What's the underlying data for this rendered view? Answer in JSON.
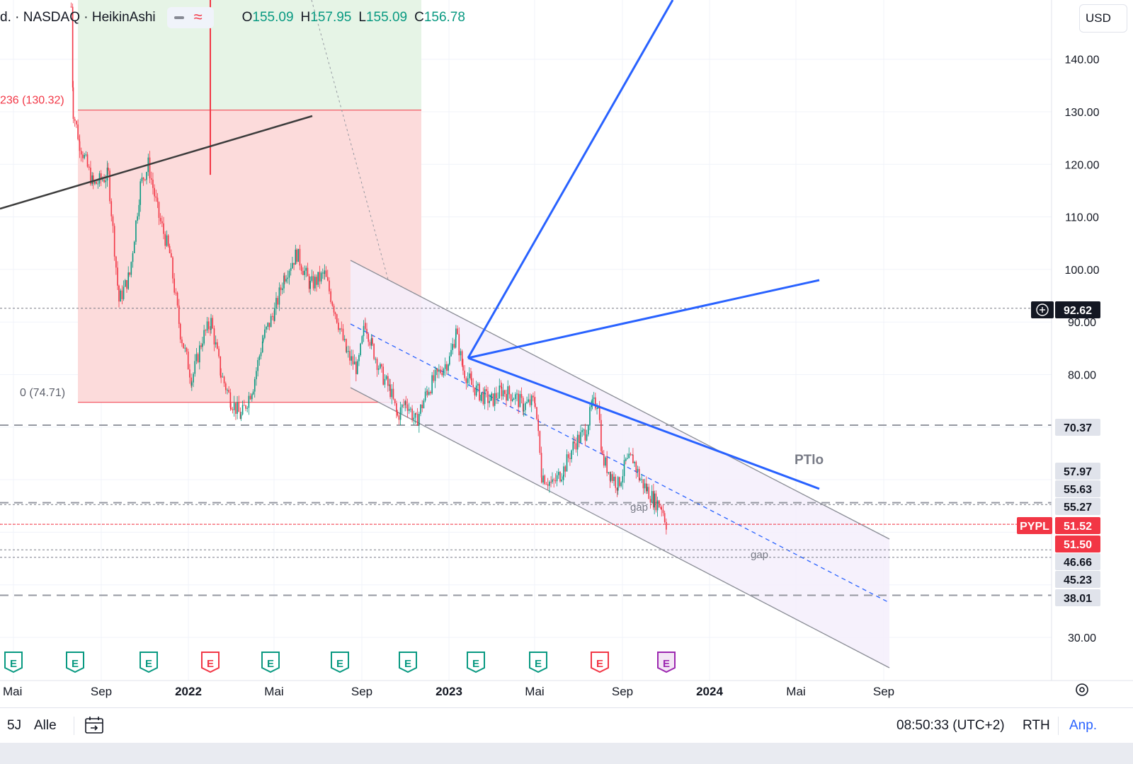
{
  "legend": {
    "symbol": "d. · NASDAQ · HeikinAshi",
    "ohlc": [
      {
        "label": "O",
        "value": "155.09"
      },
      {
        "label": "H",
        "value": "157.95"
      },
      {
        "label": "L",
        "value": "155.09"
      },
      {
        "label": "C",
        "value": "156.78"
      }
    ],
    "toggle_icon": "wave-icon"
  },
  "currency": "USD",
  "colors": {
    "up": "#089981",
    "down": "#f23645",
    "trend_blue": "#2962ff",
    "channel_fill": "#f4eefb",
    "fib_green": "#e6f4e6",
    "fib_red": "#fcd9d9"
  },
  "chart_data": {
    "type": "candlestick",
    "symbol": "PYPL",
    "exchange": "NASDAQ",
    "style": "HeikinAshi",
    "ylim": [
      24,
      152
    ],
    "y_ticks": [
      "140.00",
      "130.00",
      "120.00",
      "110.00",
      "100.00",
      "90.00",
      "80.00",
      "30.00"
    ],
    "x_ticks": [
      "Mai",
      "Sep",
      "2022",
      "Mai",
      "Sep",
      "2023",
      "Mai",
      "Sep",
      "2024",
      "Mai",
      "Sep"
    ],
    "x_tick_bold": [
      false,
      false,
      true,
      false,
      false,
      true,
      false,
      false,
      true,
      false,
      false
    ],
    "price_path": [
      [
        "2021-07-20",
        150
      ],
      [
        "2021-07-23",
        130
      ],
      [
        "2021-08-01",
        124
      ],
      [
        "2021-08-20",
        116
      ],
      [
        "2021-09-10",
        118
      ],
      [
        "2021-09-25",
        94
      ],
      [
        "2021-10-10",
        99
      ],
      [
        "2021-10-25",
        116
      ],
      [
        "2021-11-05",
        120
      ],
      [
        "2021-11-20",
        110
      ],
      [
        "2021-12-05",
        103
      ],
      [
        "2021-12-20",
        88
      ],
      [
        "2022-01-05",
        79
      ],
      [
        "2022-01-20",
        87
      ],
      [
        "2022-02-01",
        90
      ],
      [
        "2022-02-15",
        80
      ],
      [
        "2022-03-01",
        75
      ],
      [
        "2022-03-15",
        72
      ],
      [
        "2022-04-01",
        78
      ],
      [
        "2022-04-15",
        87
      ],
      [
        "2022-05-01",
        92
      ],
      [
        "2022-05-15",
        99
      ],
      [
        "2022-06-01",
        103
      ],
      [
        "2022-06-20",
        97
      ],
      [
        "2022-07-10",
        99
      ],
      [
        "2022-07-25",
        92
      ],
      [
        "2022-08-10",
        84
      ],
      [
        "2022-08-25",
        81
      ],
      [
        "2022-09-05",
        90
      ],
      [
        "2022-09-15",
        85
      ],
      [
        "2022-09-28",
        80
      ],
      [
        "2022-10-10",
        77
      ],
      [
        "2022-10-20",
        72
      ],
      [
        "2022-11-01",
        75
      ],
      [
        "2022-11-15",
        71
      ],
      [
        "2022-12-01",
        77
      ],
      [
        "2022-12-15",
        80
      ],
      [
        "2023-01-01",
        83
      ],
      [
        "2023-01-10",
        88
      ],
      [
        "2023-01-20",
        81
      ],
      [
        "2023-02-01",
        78
      ],
      [
        "2023-02-15",
        76
      ],
      [
        "2023-03-01",
        75
      ],
      [
        "2023-03-15",
        77
      ],
      [
        "2023-04-01",
        76
      ],
      [
        "2023-04-15",
        74
      ],
      [
        "2023-05-01",
        75
      ],
      [
        "2023-05-10",
        61
      ],
      [
        "2023-05-25",
        59
      ],
      [
        "2023-06-10",
        62
      ],
      [
        "2023-06-25",
        67
      ],
      [
        "2023-07-10",
        69
      ],
      [
        "2023-07-20",
        74
      ],
      [
        "2023-07-28",
        75
      ],
      [
        "2023-08-03",
        64
      ],
      [
        "2023-08-15",
        61
      ],
      [
        "2023-08-25",
        59
      ],
      [
        "2023-09-05",
        63
      ],
      [
        "2023-09-15",
        64
      ],
      [
        "2023-09-25",
        60
      ],
      [
        "2023-10-05",
        58
      ],
      [
        "2023-10-15",
        56
      ],
      [
        "2023-10-25",
        55
      ],
      [
        "2023-11-01",
        51.5
      ]
    ],
    "horizontal_levels": [
      {
        "value": 92.62,
        "label": "92.62",
        "style": "dotted",
        "color": "#787b86"
      },
      {
        "value": 70.37,
        "label": "70.37",
        "style": "dashed",
        "color": "#9598a1"
      },
      {
        "value": 57.97,
        "label": "57.97",
        "style": "none",
        "color": "#434651"
      },
      {
        "value": 55.63,
        "label": "55.63",
        "style": "dashed",
        "color": "#9598a1"
      },
      {
        "value": 55.27,
        "label": "55.27",
        "style": "dotted",
        "color": "#787b86"
      },
      {
        "value": 51.52,
        "label": "51.52",
        "style": "dotted",
        "color": "#f23645"
      },
      {
        "value": 51.5,
        "label": "51.50",
        "style": "none",
        "color": "#f23645"
      },
      {
        "value": 46.66,
        "label": "46.66",
        "style": "dotted",
        "color": "#787b86"
      },
      {
        "value": 45.23,
        "label": "45.23",
        "style": "dotted",
        "color": "#787b86"
      },
      {
        "value": 38.01,
        "label": "38.01",
        "style": "dashed",
        "color": "#9598a1"
      }
    ],
    "current_price": {
      "symbol_label": "PYPL",
      "value": "51.52"
    },
    "crosshair_price": "92.62",
    "fibonacci": {
      "upper_label": "236 (130.32)",
      "upper_value": 130.32,
      "lower_label": "0 (74.71)",
      "lower_value": 74.71
    },
    "annotations": [
      "PTlo",
      "gap",
      "gap"
    ],
    "earnings_markers": [
      {
        "label": "E",
        "kind": "positive"
      },
      {
        "label": "E",
        "kind": "positive"
      },
      {
        "label": "E",
        "kind": "positive"
      },
      {
        "label": "E",
        "kind": "negative"
      },
      {
        "label": "E",
        "kind": "positive"
      },
      {
        "label": "E",
        "kind": "positive"
      },
      {
        "label": "E",
        "kind": "positive"
      },
      {
        "label": "E",
        "kind": "positive"
      },
      {
        "label": "E",
        "kind": "positive"
      },
      {
        "label": "E",
        "kind": "negative"
      },
      {
        "label": "E",
        "kind": "upcoming"
      }
    ],
    "grid": true
  },
  "bottom_bar": {
    "range": "5J",
    "all": "Alle",
    "time": "08:50:33 (UTC+2)",
    "session": "RTH",
    "adjust": "Anp."
  }
}
